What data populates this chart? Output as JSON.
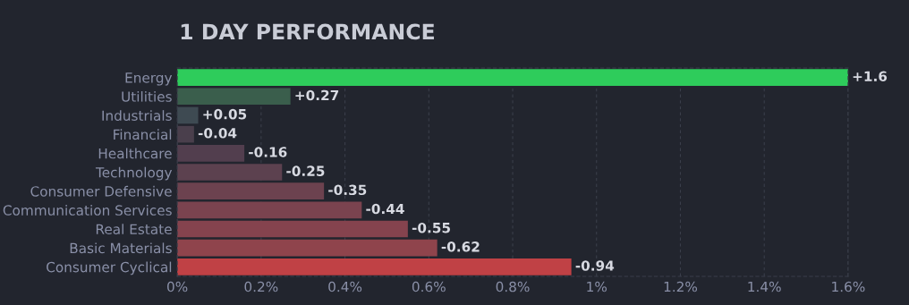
{
  "chart_data": {
    "type": "bar",
    "orientation": "horizontal",
    "title": "1 DAY PERFORMANCE",
    "categories": [
      "Energy",
      "Utilities",
      "Industrials",
      "Financial",
      "Healthcare",
      "Technology",
      "Consumer Defensive",
      "Communication Services",
      "Real Estate",
      "Basic Materials",
      "Consumer Cyclical"
    ],
    "values": [
      1.6,
      0.27,
      0.05,
      0.04,
      0.16,
      0.25,
      0.35,
      0.44,
      0.55,
      0.62,
      0.94
    ],
    "annotations": [
      {
        "text": "+1.6",
        "x": 1.6,
        "y": "Energy"
      },
      {
        "text": "+0.27",
        "x": 0.27,
        "y": "Utilities"
      },
      {
        "text": "+0.05",
        "x": 0.05,
        "y": "Industrials"
      },
      {
        "text": "-0.04",
        "x": 0.04,
        "y": "Financial"
      },
      {
        "text": "-0.16",
        "x": 0.16,
        "y": "Healthcare"
      },
      {
        "text": "-0.25",
        "x": 0.25,
        "y": "Technology"
      },
      {
        "text": "-0.35",
        "x": 0.35,
        "y": "Consumer Defensive"
      },
      {
        "text": "-0.44",
        "x": 0.44,
        "y": "Communication Services"
      },
      {
        "text": "-0.55",
        "x": 0.55,
        "y": "Real Estate"
      },
      {
        "text": "-0.62",
        "x": 0.62,
        "y": "Basic Materials"
      },
      {
        "text": "-0.94",
        "x": 0.94,
        "y": "Consumer Cyclical"
      }
    ],
    "colors": [
      "#2ecc5b",
      "#3a5e4c",
      "#3e4a52",
      "#4a3f4c",
      "#523e4e",
      "#5c414f",
      "#6c424f",
      "#7a434f",
      "#85434e",
      "#8f444c",
      "#c04145"
    ],
    "xlim": [
      0,
      1.6
    ],
    "xticks": [
      {
        "value": 0,
        "label": "0%"
      },
      {
        "value": 0.2,
        "label": "0.2%"
      },
      {
        "value": 0.4,
        "label": "0.4%"
      },
      {
        "value": 0.6,
        "label": "0.6%"
      },
      {
        "value": 0.8,
        "label": "0.8%"
      },
      {
        "value": 1,
        "label": "1%"
      },
      {
        "value": 1.2,
        "label": "1.2%"
      },
      {
        "value": 1.4,
        "label": "1.4%"
      },
      {
        "value": 1.6,
        "label": "1.6%"
      }
    ],
    "grid": "x",
    "legend": false
  }
}
